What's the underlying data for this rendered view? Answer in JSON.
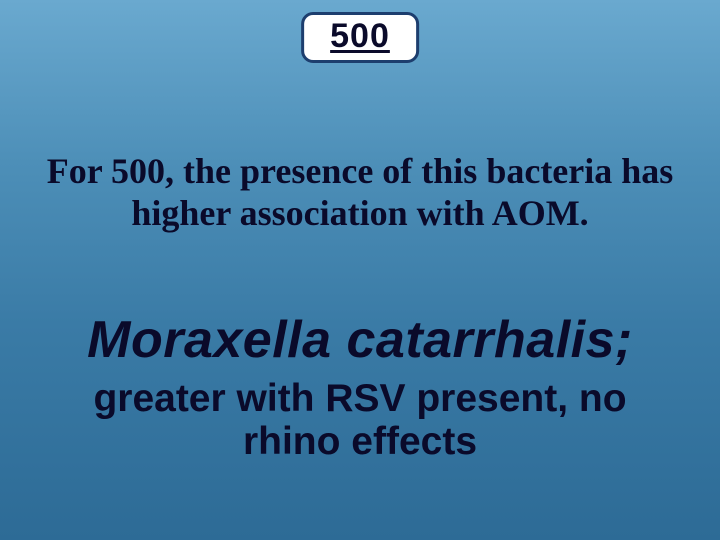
{
  "badge": {
    "value": "500"
  },
  "clue": {
    "text": "For 500, the presence of this bacteria has higher association with AOM."
  },
  "answer": {
    "main": "Moraxella catarrhalis;",
    "sub": "greater with RSV present, no rhino effects"
  },
  "style": {
    "bg_gradient_top": "#6aa9cf",
    "bg_gradient_bottom": "#2d6b96",
    "badge_bg": "#ffffff",
    "badge_border": "#1d3e6e",
    "text_color": "#0a0a2a",
    "badge_fontsize": 34,
    "clue_fontsize": 36,
    "answer_main_fontsize": 52,
    "answer_sub_fontsize": 39
  }
}
